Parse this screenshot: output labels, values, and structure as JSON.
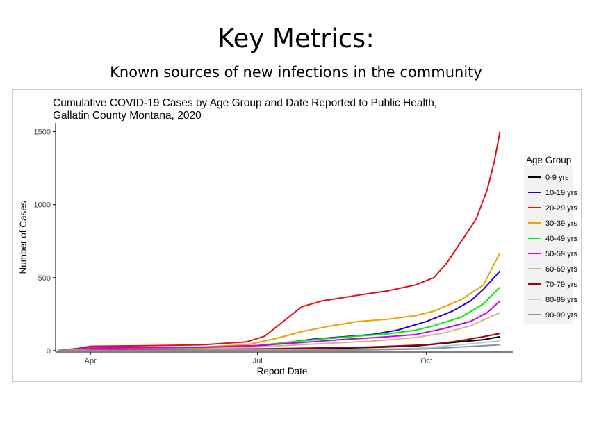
{
  "slide": {
    "title": "Key Metrics:",
    "subtitle": "Known sources of new infections in the community"
  },
  "chart_data": {
    "type": "line",
    "title": "Cumulative COVID-19 Cases by Age Group and Date Reported to Public Health,",
    "subtitle": "Gallatin County Montana, 2020",
    "xlabel": "Report Date",
    "ylabel": "Number of Cases",
    "x_tick_labels": [
      "Apr",
      "Jul",
      "Oct"
    ],
    "x_ticks": [
      "2020-04-01",
      "2020-07-01",
      "2020-10-01"
    ],
    "y_ticks": [
      0,
      500,
      1000,
      1500
    ],
    "xlim": [
      "2020-03-13",
      "2020-11-17"
    ],
    "ylim": [
      -10,
      1560
    ],
    "legend": {
      "title": "Age Group",
      "position": "right"
    },
    "grid": false,
    "series": [
      {
        "name": "0-9 yrs",
        "color": "#000000",
        "points": [
          [
            "2020-03-14",
            0
          ],
          [
            "2020-04-01",
            3
          ],
          [
            "2020-05-01",
            5
          ],
          [
            "2020-06-01",
            7
          ],
          [
            "2020-07-01",
            10
          ],
          [
            "2020-08-01",
            14
          ],
          [
            "2020-09-01",
            22
          ],
          [
            "2020-09-25",
            32
          ],
          [
            "2020-10-15",
            55
          ],
          [
            "2020-11-01",
            75
          ],
          [
            "2020-11-10",
            95
          ]
        ]
      },
      {
        "name": "10-19 yrs",
        "color": "#2200dd",
        "points": [
          [
            "2020-03-14",
            0
          ],
          [
            "2020-04-01",
            6
          ],
          [
            "2020-05-01",
            10
          ],
          [
            "2020-06-01",
            15
          ],
          [
            "2020-07-01",
            30
          ],
          [
            "2020-07-20",
            60
          ],
          [
            "2020-08-01",
            80
          ],
          [
            "2020-09-01",
            110
          ],
          [
            "2020-09-15",
            140
          ],
          [
            "2020-10-01",
            200
          ],
          [
            "2020-10-15",
            270
          ],
          [
            "2020-10-25",
            340
          ],
          [
            "2020-11-01",
            420
          ],
          [
            "2020-11-10",
            545
          ]
        ]
      },
      {
        "name": "20-29 yrs",
        "color": "#e01010",
        "points": [
          [
            "2020-03-14",
            0
          ],
          [
            "2020-03-25",
            15
          ],
          [
            "2020-04-01",
            30
          ],
          [
            "2020-05-01",
            34
          ],
          [
            "2020-06-01",
            40
          ],
          [
            "2020-06-25",
            60
          ],
          [
            "2020-07-05",
            100
          ],
          [
            "2020-07-15",
            200
          ],
          [
            "2020-07-25",
            300
          ],
          [
            "2020-08-05",
            340
          ],
          [
            "2020-08-25",
            380
          ],
          [
            "2020-09-10",
            410
          ],
          [
            "2020-09-25",
            450
          ],
          [
            "2020-10-05",
            500
          ],
          [
            "2020-10-12",
            600
          ],
          [
            "2020-10-20",
            750
          ],
          [
            "2020-10-28",
            900
          ],
          [
            "2020-11-03",
            1100
          ],
          [
            "2020-11-07",
            1300
          ],
          [
            "2020-11-10",
            1500
          ]
        ]
      },
      {
        "name": "30-39 yrs",
        "color": "#f0a000",
        "points": [
          [
            "2020-03-14",
            0
          ],
          [
            "2020-04-01",
            12
          ],
          [
            "2020-05-01",
            18
          ],
          [
            "2020-06-01",
            25
          ],
          [
            "2020-06-25",
            40
          ],
          [
            "2020-07-10",
            80
          ],
          [
            "2020-07-25",
            130
          ],
          [
            "2020-08-10",
            170
          ],
          [
            "2020-08-25",
            200
          ],
          [
            "2020-09-10",
            215
          ],
          [
            "2020-09-25",
            240
          ],
          [
            "2020-10-05",
            270
          ],
          [
            "2020-10-20",
            350
          ],
          [
            "2020-11-01",
            450
          ],
          [
            "2020-11-10",
            670
          ]
        ]
      },
      {
        "name": "40-49 yrs",
        "color": "#00ee00",
        "points": [
          [
            "2020-03-14",
            0
          ],
          [
            "2020-04-01",
            8
          ],
          [
            "2020-05-01",
            12
          ],
          [
            "2020-06-01",
            18
          ],
          [
            "2020-07-01",
            35
          ],
          [
            "2020-07-20",
            60
          ],
          [
            "2020-08-05",
            80
          ],
          [
            "2020-08-25",
            100
          ],
          [
            "2020-09-10",
            115
          ],
          [
            "2020-09-25",
            140
          ],
          [
            "2020-10-05",
            170
          ],
          [
            "2020-10-20",
            230
          ],
          [
            "2020-11-01",
            320
          ],
          [
            "2020-11-10",
            435
          ]
        ]
      },
      {
        "name": "50-59 yrs",
        "color": "#cc00ee",
        "points": [
          [
            "2020-03-14",
            0
          ],
          [
            "2020-03-25",
            12
          ],
          [
            "2020-04-01",
            18
          ],
          [
            "2020-05-01",
            20
          ],
          [
            "2020-06-01",
            23
          ],
          [
            "2020-07-01",
            35
          ],
          [
            "2020-07-25",
            55
          ],
          [
            "2020-08-15",
            75
          ],
          [
            "2020-09-10",
            95
          ],
          [
            "2020-09-25",
            110
          ],
          [
            "2020-10-10",
            150
          ],
          [
            "2020-10-25",
            200
          ],
          [
            "2020-11-03",
            260
          ],
          [
            "2020-11-10",
            340
          ]
        ]
      },
      {
        "name": "60-69 yrs",
        "color": "#d2b48c",
        "points": [
          [
            "2020-03-14",
            0
          ],
          [
            "2020-04-01",
            8
          ],
          [
            "2020-05-01",
            10
          ],
          [
            "2020-06-01",
            12
          ],
          [
            "2020-07-01",
            25
          ],
          [
            "2020-08-01",
            45
          ],
          [
            "2020-09-01",
            65
          ],
          [
            "2020-09-25",
            90
          ],
          [
            "2020-10-10",
            120
          ],
          [
            "2020-10-25",
            170
          ],
          [
            "2020-11-10",
            260
          ]
        ]
      },
      {
        "name": "70-79 yrs",
        "color": "#a00010",
        "points": [
          [
            "2020-03-14",
            0
          ],
          [
            "2020-04-01",
            3
          ],
          [
            "2020-05-01",
            5
          ],
          [
            "2020-06-01",
            7
          ],
          [
            "2020-07-01",
            12
          ],
          [
            "2020-08-01",
            18
          ],
          [
            "2020-09-01",
            25
          ],
          [
            "2020-10-01",
            40
          ],
          [
            "2020-10-15",
            60
          ],
          [
            "2020-11-01",
            95
          ],
          [
            "2020-11-10",
            118
          ]
        ]
      },
      {
        "name": "80-89 yrs",
        "color": "#a8d0e8",
        "points": [
          [
            "2020-03-14",
            0
          ],
          [
            "2020-04-01",
            1
          ],
          [
            "2020-05-01",
            2
          ],
          [
            "2020-06-01",
            3
          ],
          [
            "2020-07-01",
            4
          ],
          [
            "2020-08-01",
            6
          ],
          [
            "2020-09-01",
            10
          ],
          [
            "2020-09-25",
            15
          ],
          [
            "2020-10-15",
            35
          ],
          [
            "2020-11-01",
            55
          ],
          [
            "2020-11-10",
            68
          ]
        ]
      },
      {
        "name": "90-99 yrs",
        "color": "#909090",
        "points": [
          [
            "2020-03-14",
            0
          ],
          [
            "2020-04-01",
            0
          ],
          [
            "2020-05-01",
            1
          ],
          [
            "2020-06-01",
            1
          ],
          [
            "2020-07-01",
            2
          ],
          [
            "2020-08-01",
            3
          ],
          [
            "2020-09-01",
            5
          ],
          [
            "2020-10-01",
            12
          ],
          [
            "2020-10-20",
            25
          ],
          [
            "2020-11-10",
            40
          ]
        ]
      }
    ]
  }
}
